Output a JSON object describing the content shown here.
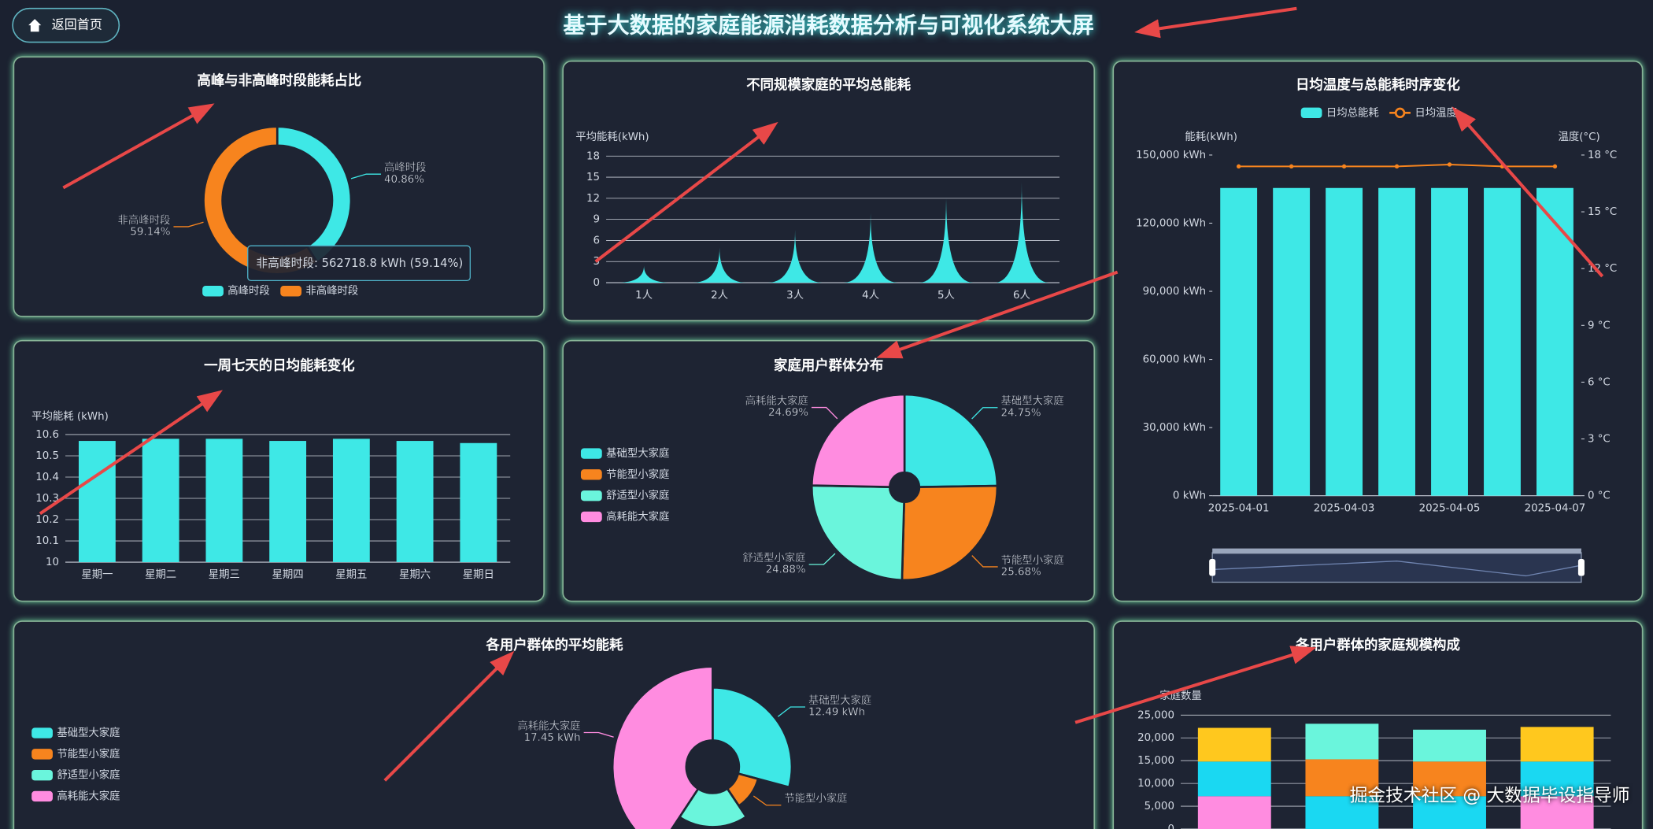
{
  "header": {
    "button": "返回首页",
    "title": "基于大数据的家庭能源消耗数据分析与可视化系统大屏"
  },
  "watermark": "掘金技术社区 @ 大数据毕设指导师",
  "chart_data": [
    {
      "type": "pie",
      "donut": true,
      "title": "高峰与非高峰时段能耗占比",
      "categories": [
        "高峰时段",
        "非高峰时段"
      ],
      "values": [
        40.86,
        59.14
      ],
      "value_labels": [
        "40.86%",
        "59.14%"
      ],
      "colors": [
        "#3ee8e6",
        "#f7841e"
      ],
      "legend": "bottom",
      "tooltip": "非高峰时段: 562718.8 kWh (59.14%)"
    },
    {
      "type": "spike",
      "title": "不同规模家庭的平均总能耗",
      "y_label": "平均能耗(kWh)",
      "categories": [
        "1人",
        "2人",
        "3人",
        "4人",
        "5人",
        "6人"
      ],
      "values": [
        2.4,
        5,
        7.5,
        9.9,
        12.3,
        14.3
      ],
      "color": "#3ee8e6",
      "ylim": [
        0,
        18
      ],
      "yticks": [
        0,
        3,
        6,
        9,
        12,
        15,
        18
      ],
      "grid": true
    },
    {
      "type": "bar-line",
      "title": "日均温度与总能耗时序变化",
      "y_label": "能耗(kWh)",
      "y2_label": "温度(°C)",
      "categories": [
        "2025-04-01",
        null,
        "2025-04-03",
        null,
        "2025-04-05",
        null,
        "2025-04-07"
      ],
      "series": [
        {
          "name": "日均总能耗",
          "type": "bar",
          "color": "#3ee8e6",
          "values": [
            135500,
            135500,
            135500,
            135500,
            135500,
            135500,
            135500
          ]
        },
        {
          "name": "日均温度",
          "type": "line",
          "axis": "y2",
          "color": "#f7841e",
          "values": [
            17.4,
            17.4,
            17.4,
            17.4,
            17.5,
            17.4,
            17.4
          ]
        }
      ],
      "ylim": [
        0,
        150000
      ],
      "yticks": [
        {
          "value": 0,
          "label": "0 kWh"
        },
        {
          "value": 30000,
          "label": "30,000 kWh"
        },
        {
          "value": 60000,
          "label": "60,000 kWh"
        },
        {
          "value": 90000,
          "label": "90,000 kWh"
        },
        {
          "value": 120000,
          "label": "120,000 kWh"
        },
        {
          "value": 150000,
          "label": "150,000 kWh"
        }
      ],
      "y2lim": [
        0,
        18
      ],
      "y2ticks": [
        {
          "value": 0,
          "label": "0 °C"
        },
        {
          "value": 3,
          "label": "3 °C"
        },
        {
          "value": 6,
          "label": "6 °C"
        },
        {
          "value": 9,
          "label": "9 °C"
        },
        {
          "value": 12,
          "label": "12 °C"
        },
        {
          "value": 15,
          "label": "15 °C"
        },
        {
          "value": 18,
          "label": "18 °C"
        }
      ],
      "grid": false,
      "legend": "top",
      "data_zoom": true
    },
    {
      "type": "bar",
      "title": "一周七天的日均能耗变化",
      "y_label": "平均能耗 (kWh)",
      "categories": [
        "星期一",
        "星期二",
        "星期三",
        "星期四",
        "星期五",
        "星期六",
        "星期日"
      ],
      "values": [
        10.57,
        10.58,
        10.58,
        10.57,
        10.58,
        10.57,
        10.56
      ],
      "color": "#3ee8e6",
      "ylim": [
        10,
        10.6
      ],
      "yticks": [
        10,
        10.1,
        10.2,
        10.3,
        10.4,
        10.5,
        10.6
      ],
      "grid": true
    },
    {
      "type": "pie",
      "donut": false,
      "title": "家庭用户群体分布",
      "categories": [
        "基础型大家庭",
        "节能型小家庭",
        "舒适型小家庭",
        "高耗能大家庭"
      ],
      "values": [
        24.75,
        25.68,
        24.88,
        24.69
      ],
      "value_labels": [
        "24.75%",
        "25.68%",
        "24.88%",
        "24.69%"
      ],
      "colors": [
        "#3ee8e6",
        "#f7841e",
        "#6af5dc",
        "#ff8ce0"
      ],
      "legend": "left"
    },
    {
      "type": "rose",
      "title": "各用户群体的平均能耗",
      "categories": [
        "基础型大家庭",
        "节能型小家庭",
        "舒适型小家庭",
        "高耗能大家庭"
      ],
      "values": [
        12.49,
        4.9,
        8,
        17.45
      ],
      "value_labels": [
        "12.49 kWh",
        null,
        null,
        "17.45 kWh"
      ],
      "colors": [
        "#3ee8e6",
        "#f7841e",
        "#6af5dc",
        "#ff8ce0"
      ],
      "legend": "left"
    },
    {
      "type": "stacked-bar",
      "title": "各用户群体的家庭规模构成",
      "y_label": "家庭数量",
      "categories": [
        null,
        null,
        null,
        null
      ],
      "series": [
        {
          "color": "#ff8ce0",
          "values": [
            7200,
            0,
            0,
            7200
          ]
        },
        {
          "color": "#1ad8f2",
          "values": [
            7600,
            7200,
            7200,
            7600
          ]
        },
        {
          "color": "#f7841e",
          "values": [
            0,
            8100,
            7600,
            0
          ]
        },
        {
          "color": "#6af5dc",
          "values": [
            0,
            7800,
            7000,
            0
          ]
        },
        {
          "color": "#ffc81e",
          "values": [
            7400,
            0,
            0,
            7600
          ]
        }
      ],
      "ylim": [
        0,
        25000
      ],
      "yticks": [
        0,
        {
          "value": 5000,
          "label": "5,000"
        },
        {
          "value": 10000,
          "label": "10,000"
        },
        {
          "value": 15000,
          "label": "15,000"
        },
        {
          "value": 20000,
          "label": "20,000"
        },
        {
          "value": 25000,
          "label": "25,000"
        }
      ],
      "grid": true
    }
  ]
}
